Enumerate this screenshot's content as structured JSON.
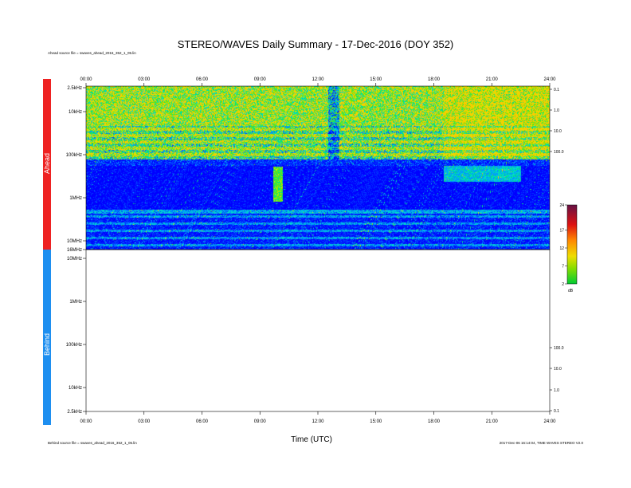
{
  "chart_data": {
    "type": "heatmap",
    "title": "STEREO/WAVES Daily Summary - 17-Dec-2016 (DOY 352)",
    "xlabel": "Time (UTC)",
    "x_ticks": [
      "00:00",
      "03:00",
      "06:00",
      "09:00",
      "12:00",
      "15:00",
      "18:00",
      "21:00",
      "24:00"
    ],
    "xlim_hours": [
      0,
      24
    ],
    "panels": [
      {
        "name": "Ahead",
        "y_ticks": [
          "2.5kHz",
          "10kHz",
          "100kHz",
          "1MHz",
          "10MHz",
          "16MHz"
        ],
        "right_ticks": [
          "0.1",
          "1.0",
          "10.0",
          "100.0"
        ],
        "source_text": "Ahead source file = swaves_ahead_2016_352_1_05.lin",
        "color": "#ee2222"
      },
      {
        "name": "Behind",
        "y_ticks": [
          "10MHz",
          "1MHz",
          "100kHz",
          "10kHz",
          "2.5kHz"
        ],
        "right_ticks": [
          "100.0",
          "10.0",
          "1.0",
          "0.1"
        ],
        "source_text": "Behind source file = swaves_ahead_2016_352_1_05.lin",
        "color": "#1e8ff0"
      }
    ],
    "colorbar": {
      "ticks": [
        "24",
        "17",
        "12",
        "7",
        "2"
      ],
      "range": [
        2,
        24
      ],
      "unit": "dB"
    },
    "footer_right": "2017-Dec-06 16:14:04, TIME WAVES STEREO V2.0"
  }
}
